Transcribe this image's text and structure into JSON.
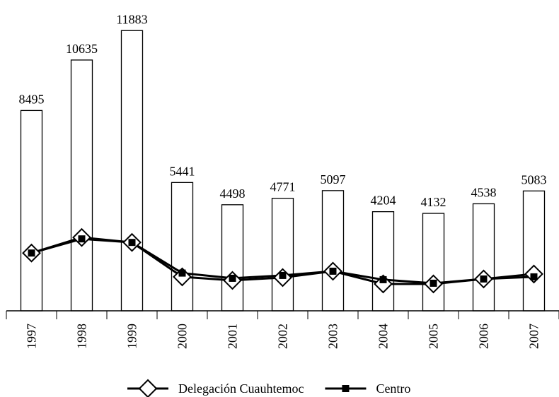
{
  "chart_data": {
    "type": "bar",
    "categories": [
      "1997",
      "1998",
      "1999",
      "2000",
      "2001",
      "2002",
      "2003",
      "2004",
      "2005",
      "2006",
      "2007"
    ],
    "values": [
      8495,
      10635,
      11883,
      5441,
      4498,
      4771,
      5097,
      4204,
      4132,
      4538,
      5083
    ],
    "color": "#ffffff",
    "series": [
      {
        "name": "Delegación Cuauhtemoc",
        "color": "#000000",
        "marker": "diamond",
        "values": [
          2450,
          3110,
          2900,
          1440,
          1290,
          1410,
          1680,
          1140,
          1140,
          1350,
          1560
        ]
      },
      {
        "name": "Centro",
        "color": "#000000",
        "marker": "square",
        "values": [
          2450,
          3050,
          2900,
          1600,
          1380,
          1500,
          1680,
          1320,
          1170,
          1350,
          1440
        ]
      }
    ],
    "ylim": [
      0,
      13000
    ]
  }
}
